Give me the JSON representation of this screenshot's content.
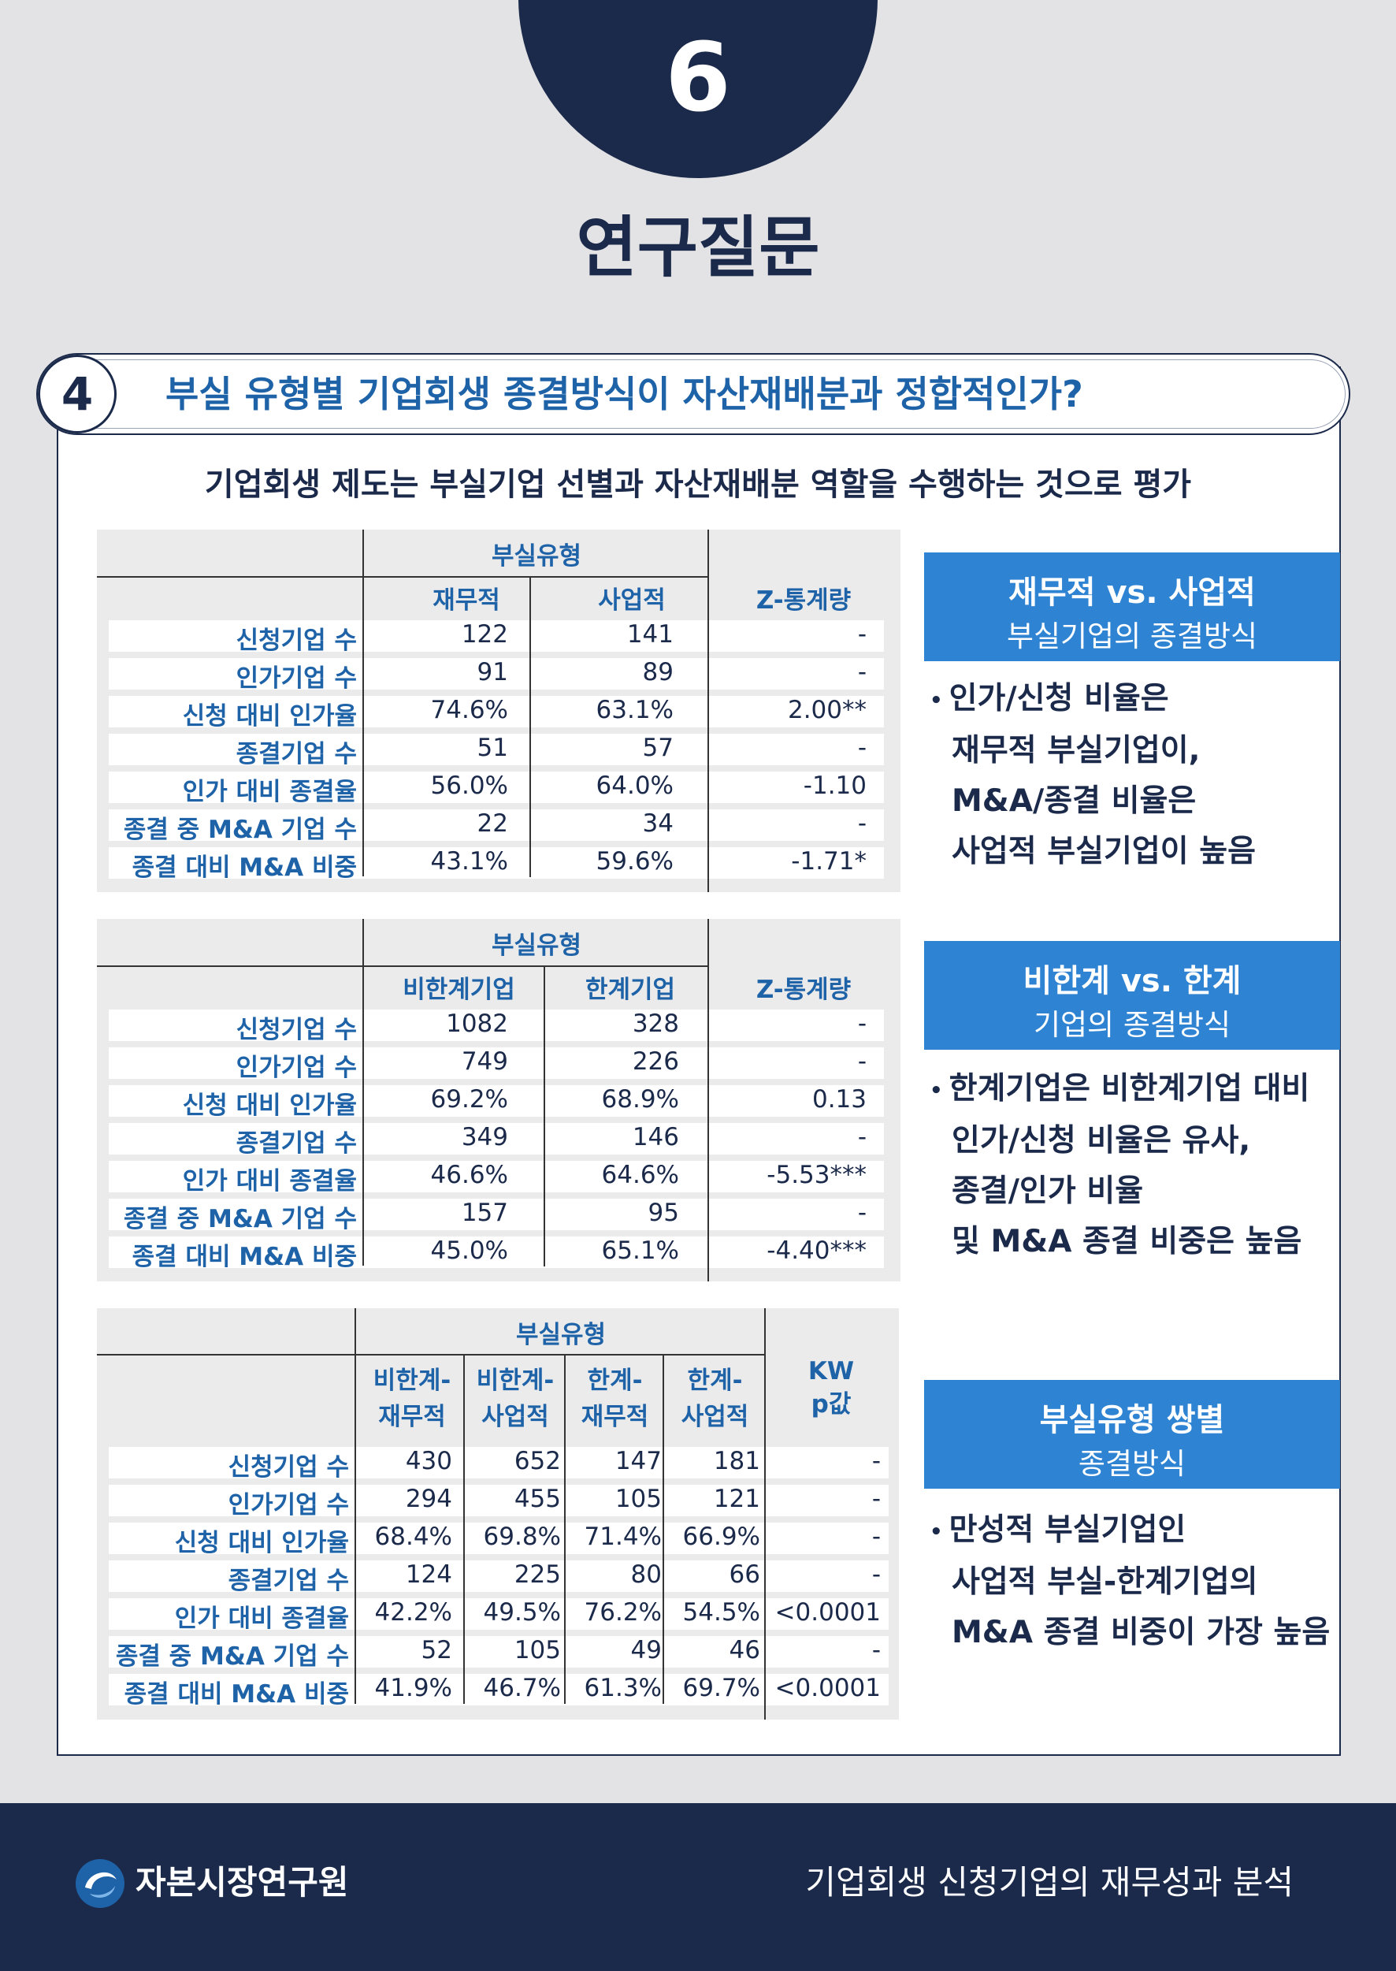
{
  "page": {
    "number": "6",
    "title": "연구질문"
  },
  "question": {
    "number": "4",
    "text": "부실 유형별 기업회생 종결방식이 자산재배분과 정합적인가?"
  },
  "subtitle": "기업회생 제도는 부실기업 선별과 자산재배분 역할을 수행하는 것으로 평가",
  "table1": {
    "group_header": "부실유형",
    "col1": "재무적",
    "col2": "사업적",
    "stat": "Z-통계량",
    "rows": [
      {
        "label": "신청기업 수",
        "a": "122",
        "b": "141",
        "z": "-"
      },
      {
        "label": "인가기업 수",
        "a": "91",
        "b": "89",
        "z": "-"
      },
      {
        "label": "신청 대비 인가율",
        "a": "74.6%",
        "b": "63.1%",
        "z": "2.00**"
      },
      {
        "label": "종결기업 수",
        "a": "51",
        "b": "57",
        "z": "-"
      },
      {
        "label": "인가 대비 종결율",
        "a": "56.0%",
        "b": "64.0%",
        "z": "-1.10"
      },
      {
        "label": "종결 중 M&A 기업 수",
        "a": "22",
        "b": "34",
        "z": "-"
      },
      {
        "label": "종결 대비 M&A 비중",
        "a": "43.1%",
        "b": "59.6%",
        "z": "-1.71*"
      }
    ]
  },
  "table2": {
    "group_header": "부실유형",
    "col1": "비한계기업",
    "col2": "한계기업",
    "stat": "Z-통계량",
    "rows": [
      {
        "label": "신청기업 수",
        "a": "1082",
        "b": "328",
        "z": "-"
      },
      {
        "label": "인가기업 수",
        "a": "749",
        "b": "226",
        "z": "-"
      },
      {
        "label": "신청 대비 인가율",
        "a": "69.2%",
        "b": "68.9%",
        "z": "0.13"
      },
      {
        "label": "종결기업 수",
        "a": "349",
        "b": "146",
        "z": "-"
      },
      {
        "label": "인가 대비 종결율",
        "a": "46.6%",
        "b": "64.6%",
        "z": "-5.53***"
      },
      {
        "label": "종결 중 M&A 기업 수",
        "a": "157",
        "b": "95",
        "z": "-"
      },
      {
        "label": "종결 대비 M&A 비중",
        "a": "45.0%",
        "b": "65.1%",
        "z": "-4.40***"
      }
    ]
  },
  "table3": {
    "group_header": "부실유형",
    "cols": [
      {
        "l1": "비한계-",
        "l2": "재무적"
      },
      {
        "l1": "비한계-",
        "l2": "사업적"
      },
      {
        "l1": "한계-",
        "l2": "재무적"
      },
      {
        "l1": "한계-",
        "l2": "사업적"
      }
    ],
    "stat_l1": "KW",
    "stat_l2": "p값",
    "rows": [
      {
        "label": "신청기업 수",
        "v": [
          "430",
          "652",
          "147",
          "181"
        ],
        "p": "-"
      },
      {
        "label": "인가기업 수",
        "v": [
          "294",
          "455",
          "105",
          "121"
        ],
        "p": "-"
      },
      {
        "label": "신청 대비 인가율",
        "v": [
          "68.4%",
          "69.8%",
          "71.4%",
          "66.9%"
        ],
        "p": "-"
      },
      {
        "label": "종결기업 수",
        "v": [
          "124",
          "225",
          "80",
          "66"
        ],
        "p": "-"
      },
      {
        "label": "인가 대비 종결율",
        "v": [
          "42.2%",
          "49.5%",
          "76.2%",
          "54.5%"
        ],
        "p": "<0.0001"
      },
      {
        "label": "종결 중 M&A 기업 수",
        "v": [
          "52",
          "105",
          "49",
          "46"
        ],
        "p": "-"
      },
      {
        "label": "종결 대비 M&A 비중",
        "v": [
          "41.9%",
          "46.7%",
          "61.3%",
          "69.7%"
        ],
        "p": "<0.0001"
      }
    ]
  },
  "side1": {
    "title": "재무적 vs. 사업적",
    "sub": "부실기업의 종결방식",
    "lines": [
      "인가/신청 비율은",
      "재무적 부실기업이,",
      "M&A/종결 비율은",
      "사업적 부실기업이 높음"
    ]
  },
  "side2": {
    "title": "비한계 vs. 한계",
    "sub": "기업의 종결방식",
    "lines": [
      "한계기업은 비한계기업 대비",
      "인가/신청 비율은 유사,",
      "종결/인가 비율",
      "및 M&A 종결 비중은 높음"
    ]
  },
  "side3": {
    "title": "부실유형 쌍별",
    "sub": "종결방식",
    "lines": [
      "만성적 부실기업인",
      "사업적 부실-한계기업의",
      "M&A 종결 비중이 가장 높음"
    ]
  },
  "footer": {
    "org": "자본시장연구원",
    "report": "기업회생 신청기업의 재무성과 분석"
  },
  "colors": {
    "navy": "#1b2a4a",
    "blue": "#1e62a8",
    "accent": "#2f83d3"
  }
}
